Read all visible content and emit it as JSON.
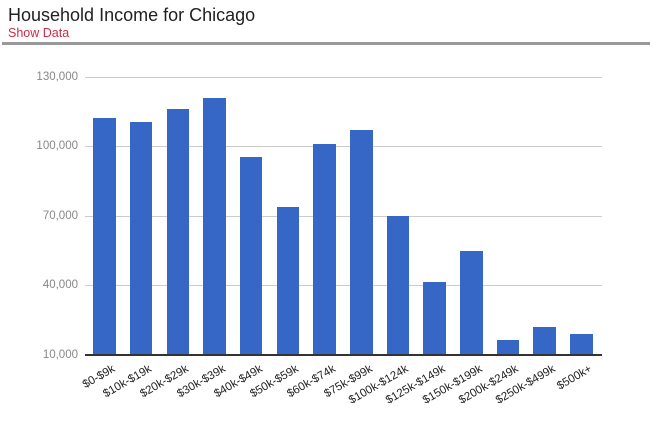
{
  "header": {
    "title": "Household Income for Chicago",
    "show_data_label": "Show Data"
  },
  "colors": {
    "bar": "#3666C6",
    "link": "#D02B45",
    "divider": "#999999",
    "gridline": "#CCCCCC",
    "axis_line": "#333333",
    "y_tick_text": "#888888",
    "x_tick_text": "#222222",
    "title_text": "#212121",
    "background": "#FFFFFF"
  },
  "chart_data": {
    "type": "bar",
    "title": "Household Income for Chicago",
    "categories": [
      "$0-$9k",
      "$10k-$19k",
      "$20k-$29k",
      "$30k-$39k",
      "$40k-$49k",
      "$50k-$59k",
      "$60k-$74k",
      "$75k-$99k",
      "$100k-$124k",
      "$125k-$149k",
      "$150k-$199k",
      "$200k-$249k",
      "$250k-$499k",
      "$500k+"
    ],
    "values": [
      112500,
      110500,
      116000,
      121000,
      95500,
      74000,
      101000,
      107000,
      70000,
      41500,
      55000,
      16500,
      22000,
      19000
    ],
    "xlabel": "",
    "ylabel": "",
    "ylim": [
      10000,
      130000
    ],
    "yticks": [
      10000,
      40000,
      70000,
      100000,
      130000
    ],
    "ytick_labels": [
      "10,000",
      "40,000",
      "70,000",
      "100,000",
      "130,000"
    ],
    "grid": true,
    "legend": "none",
    "bar_color": "#3666C6"
  }
}
